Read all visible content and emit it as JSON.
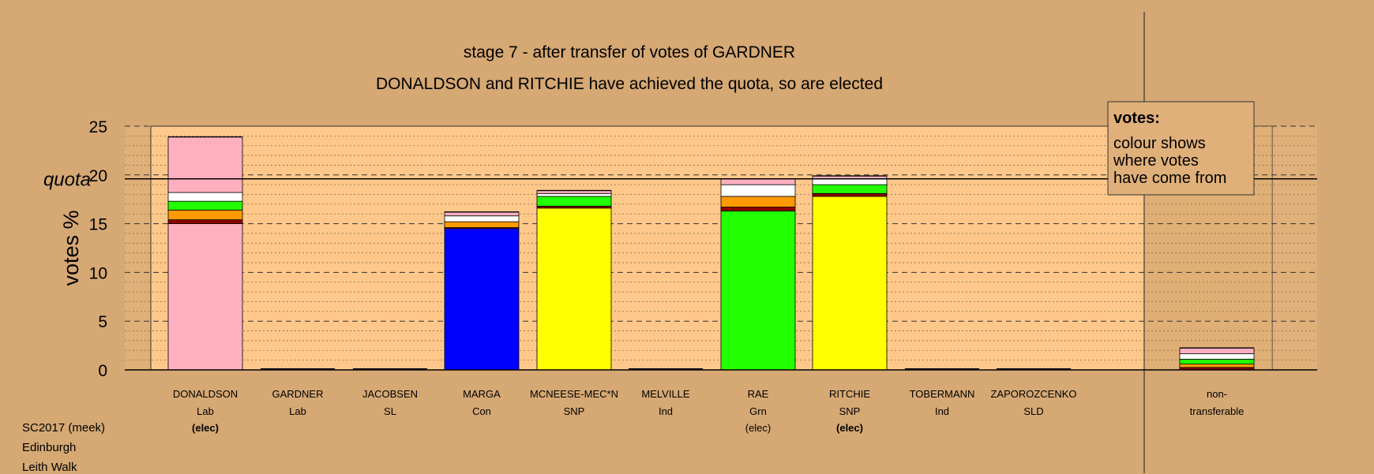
{
  "chart_data": {
    "type": "bar",
    "title": "stage 7 - after transfer of votes of GARDNER",
    "subtitle": "DONALDSON and RITCHIE have achieved the quota, so are elected",
    "ylabel": "votes %",
    "quota_label": "quota",
    "quota": 19.6,
    "ylim": [
      0,
      25
    ],
    "yticks": [
      0,
      5,
      10,
      15,
      20,
      25
    ],
    "grid": true,
    "legend": {
      "title": "votes:",
      "lines": [
        "colour shows",
        "where votes",
        "have come from"
      ],
      "placement": "top-right"
    },
    "colors": {
      "Lab": "#ffb0c0",
      "Con": "#0000ff",
      "SNP": "#ffff00",
      "Grn": "#22ff00",
      "SL": "#8b0000",
      "Ind": "#ffffff",
      "SLD": "#ff9900",
      "other": "#ffb0c0",
      "background": "#d5a874",
      "plot_area": "#ffc88a"
    },
    "candidates": [
      {
        "name": "DONALDSON",
        "party": "Lab",
        "status": "(elec)",
        "segments": [
          {
            "from": "Lab",
            "value": 15.0
          },
          {
            "from": "SL",
            "value": 0.4
          },
          {
            "from": "SLD",
            "value": 1.0
          },
          {
            "from": "Grn",
            "value": 0.9
          },
          {
            "from": "Ind",
            "value": 0.9
          },
          {
            "from": "other",
            "value": 5.7
          }
        ]
      },
      {
        "name": "GARDNER",
        "party": "Lab",
        "status": "",
        "segments": []
      },
      {
        "name": "JACOBSEN",
        "party": "SL",
        "status": "",
        "segments": []
      },
      {
        "name": "MARGA",
        "party": "Con",
        "status": "",
        "segments": [
          {
            "from": "Con",
            "value": 14.5
          },
          {
            "from": "SL",
            "value": 0.1
          },
          {
            "from": "SLD",
            "value": 0.6
          },
          {
            "from": "Ind",
            "value": 0.6
          },
          {
            "from": "other",
            "value": 0.4
          }
        ]
      },
      {
        "name": "MCNEESE-MEC*N",
        "party": "SNP",
        "status": "",
        "segments": [
          {
            "from": "SNP",
            "value": 16.6
          },
          {
            "from": "SL",
            "value": 0.2
          },
          {
            "from": "Grn",
            "value": 1.0
          },
          {
            "from": "Ind",
            "value": 0.3
          },
          {
            "from": "other",
            "value": 0.3
          }
        ]
      },
      {
        "name": "MELVILLE",
        "party": "Ind",
        "status": "",
        "segments": []
      },
      {
        "name": "RAE",
        "party": "Grn",
        "status": "(elec)",
        "segments": [
          {
            "from": "Grn",
            "value": 16.3
          },
          {
            "from": "SL",
            "value": 0.4
          },
          {
            "from": "SLD",
            "value": 1.1
          },
          {
            "from": "Ind",
            "value": 1.2
          },
          {
            "from": "other",
            "value": 0.6
          }
        ]
      },
      {
        "name": "RITCHIE",
        "party": "SNP",
        "status": "(elec)",
        "segments": [
          {
            "from": "SNP",
            "value": 17.8
          },
          {
            "from": "SL",
            "value": 0.3
          },
          {
            "from": "Grn",
            "value": 0.9
          },
          {
            "from": "Ind",
            "value": 0.6
          },
          {
            "from": "other",
            "value": 0.3
          }
        ]
      },
      {
        "name": "TOBERMANN",
        "party": "Ind",
        "status": "",
        "segments": []
      },
      {
        "name": "ZAPOROZCENKO",
        "party": "SLD",
        "status": "",
        "segments": []
      }
    ],
    "nontransferable": {
      "label_line1": "non-",
      "label_line2": "transferable",
      "segments": [
        {
          "from": "SL",
          "value": 0.25
        },
        {
          "from": "SLD",
          "value": 0.35
        },
        {
          "from": "Grn",
          "value": 0.5
        },
        {
          "from": "Ind",
          "value": 0.55
        },
        {
          "from": "other",
          "value": 0.6
        }
      ]
    }
  },
  "footer": {
    "line1": "SC2017 (meek)",
    "line2": "Edinburgh",
    "line3": "Leith Walk"
  }
}
